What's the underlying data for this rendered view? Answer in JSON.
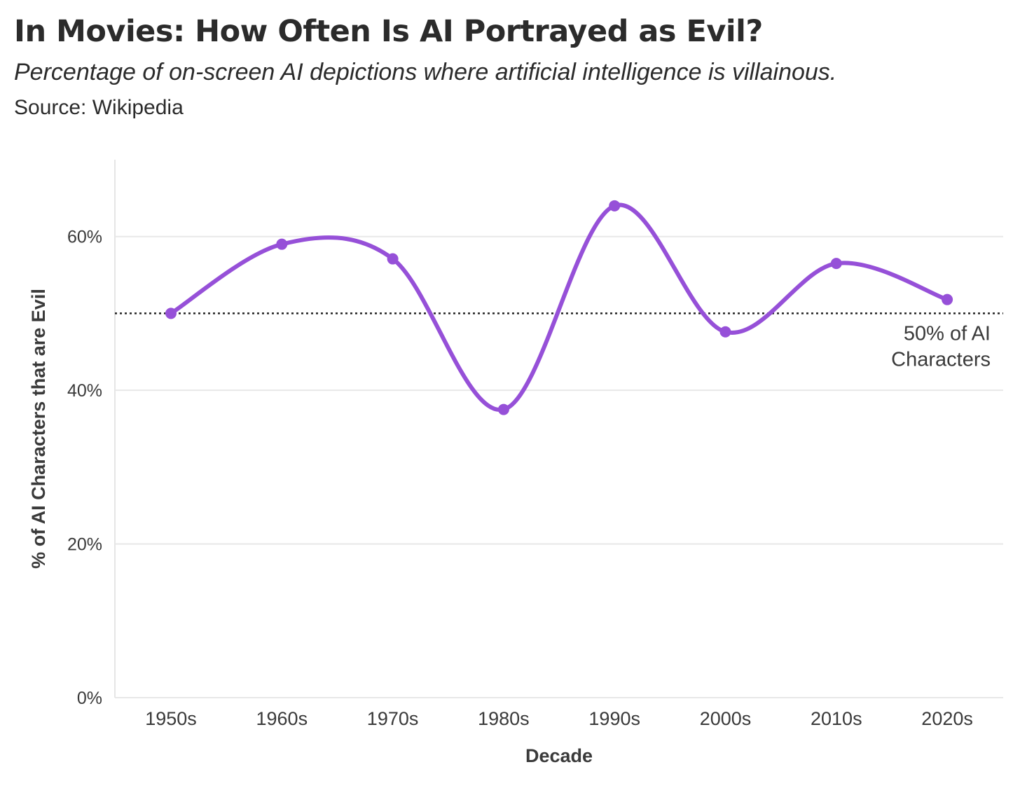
{
  "header": {
    "title": "In Movies: How Often Is AI Portrayed as Evil?",
    "subtitle": "Percentage of on-screen AI depictions where artificial intelligence is villainous.",
    "source": "Source: Wikipedia"
  },
  "chart_data": {
    "type": "line",
    "title": "In Movies: How Often Is AI Portrayed as Evil?",
    "subtitle": "Percentage of on-screen AI depictions where artificial intelligence is villainous.",
    "xlabel": "Decade",
    "ylabel": "% of AI Characters that are Evil",
    "categories": [
      "1950s",
      "1960s",
      "1970s",
      "1980s",
      "1990s",
      "2000s",
      "2010s",
      "2020s"
    ],
    "series": [
      {
        "values": [
          50,
          59,
          57.1,
          37.5,
          64,
          47.6,
          56.5,
          51.8
        ]
      }
    ],
    "ylim": [
      0,
      70
    ],
    "yticks": [
      0,
      20,
      40,
      60
    ],
    "ytick_labels": [
      "0%",
      "20%",
      "40%",
      "60%"
    ],
    "grid": true,
    "line_color": "#9650d8",
    "reference_line": {
      "value": 50,
      "style": "dotted",
      "label_lines": [
        "50% of AI",
        "Characters"
      ]
    }
  }
}
